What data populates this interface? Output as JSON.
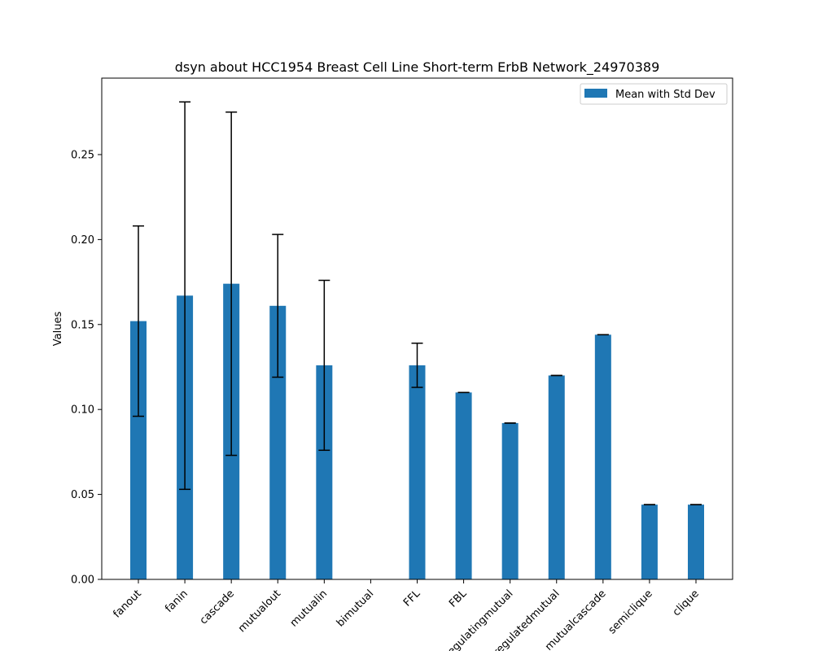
{
  "chart_data": {
    "type": "bar",
    "title": "dsyn about HCC1954 Breast Cell Line Short-term ErbB Network_24970389",
    "xlabel": "",
    "ylabel": "Values",
    "ylim": [
      0,
      0.295
    ],
    "yticks": [
      "0.00",
      "0.05",
      "0.10",
      "0.15",
      "0.20",
      "0.25"
    ],
    "ytick_values": [
      0,
      0.05,
      0.1,
      0.15,
      0.2,
      0.25
    ],
    "categories": [
      "fanout",
      "fanin",
      "cascade",
      "mutualout",
      "mutualin",
      "bimutual",
      "FFL",
      "FBL",
      "regulatingmutual",
      "regulatedmutual",
      "mutualcascade",
      "semiclique",
      "clique"
    ],
    "series": [
      {
        "name": "Mean with Std Dev",
        "color": "#1f77b4",
        "values": [
          0.152,
          0.167,
          0.174,
          0.161,
          0.126,
          0.0,
          0.126,
          0.11,
          0.092,
          0.12,
          0.144,
          0.044,
          0.044
        ],
        "errors": [
          0.056,
          0.114,
          0.101,
          0.042,
          0.05,
          0.0,
          0.013,
          0.0,
          0.0,
          0.0,
          0.0,
          0.0,
          0.0
        ]
      }
    ],
    "legend": "top-right",
    "grid": false
  }
}
